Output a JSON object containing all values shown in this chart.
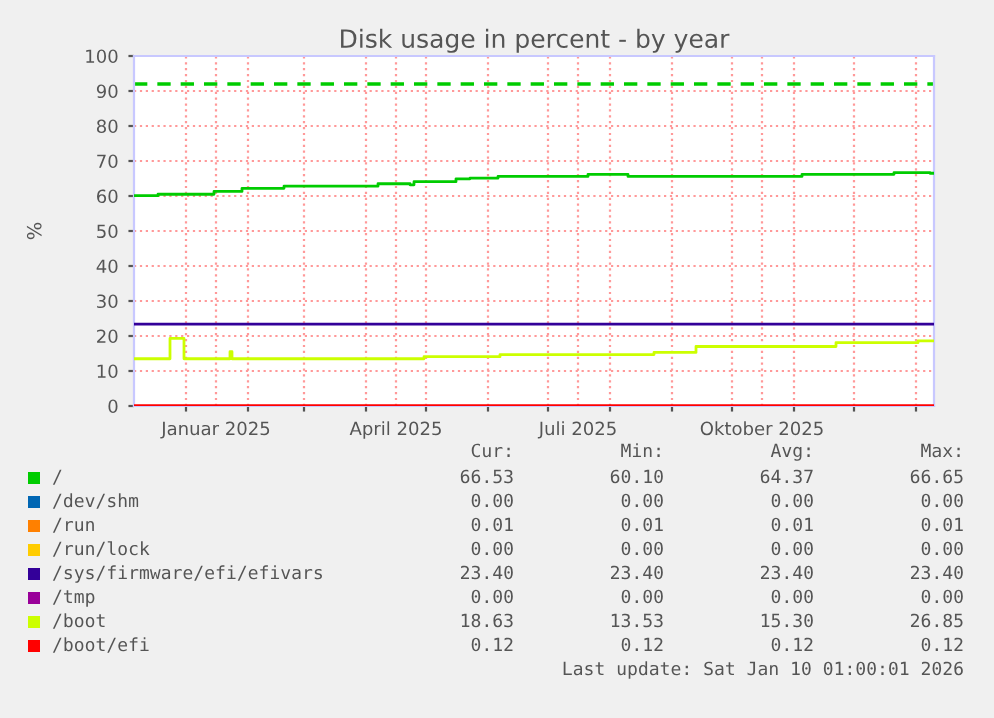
{
  "chart_data": {
    "type": "step",
    "title": "Disk usage in percent - by year",
    "ylabel": "%",
    "xlim": [
      "2024-12-06",
      "2026-01-10"
    ],
    "ylim": [
      0,
      100
    ],
    "yticks": [
      0,
      10,
      20,
      30,
      40,
      50,
      60,
      70,
      80,
      90,
      100
    ],
    "xticks": [
      {
        "value": "2025-01-01",
        "label": null
      },
      {
        "value": "2025-02-01",
        "label": null
      },
      {
        "value": "2025-03-01",
        "label": null
      },
      {
        "value": "2025-04-01",
        "label": null
      },
      {
        "value": "2025-05-01",
        "label": null
      },
      {
        "value": "2025-06-01",
        "label": null
      },
      {
        "value": "2025-07-01",
        "label": null
      },
      {
        "value": "2025-08-01",
        "label": null
      },
      {
        "value": "2025-09-01",
        "label": null
      },
      {
        "value": "2025-10-01",
        "label": null
      },
      {
        "value": "2025-11-01",
        "label": null
      },
      {
        "value": "2025-12-01",
        "label": null
      },
      {
        "value": "2026-01-01",
        "label": null
      },
      {
        "value": "2025-01-16",
        "label": "Januar 2025"
      },
      {
        "value": "2025-04-16",
        "label": "April 2025"
      },
      {
        "value": "2025-07-16",
        "label": "Juli 2025"
      },
      {
        "value": "2025-10-16",
        "label": "Oktober 2025"
      }
    ],
    "grid": true,
    "legend": "bottom",
    "series": [
      {
        "name": "/",
        "color": "#00cc00",
        "x": [
          "2024-12-06",
          "2024-12-18",
          "2025-01-15",
          "2025-01-29",
          "2025-02-19",
          "2025-04-07",
          "2025-04-23",
          "2025-04-25",
          "2025-05-16",
          "2025-05-23",
          "2025-06-06",
          "2025-07-21",
          "2025-08-10",
          "2025-11-05",
          "2025-12-21",
          "2026-01-08",
          "2026-01-10"
        ],
        "values": [
          60.1,
          60.5,
          61.3,
          62.2,
          62.8,
          63.5,
          63.2,
          64.1,
          64.9,
          65.1,
          65.6,
          66.2,
          65.6,
          66.2,
          66.7,
          66.5,
          66.5
        ]
      },
      {
        "name": "/dev/shm",
        "color": "#0066b3"
      },
      {
        "name": "/run",
        "color": "#ff8000"
      },
      {
        "name": "/run/lock",
        "color": "#ffcc00"
      },
      {
        "name": "/sys/firmware/efi/efivars",
        "color": "#330099",
        "x": [
          "2024-12-06",
          "2026-01-10"
        ],
        "values": [
          23.4,
          23.4
        ]
      },
      {
        "name": "/tmp",
        "color": "#990099"
      },
      {
        "name": "/boot",
        "color": "#ccff00",
        "x": [
          "2024-12-06",
          "2024-12-24",
          "2024-12-31",
          "2025-01-23",
          "2025-01-24",
          "2025-04-30",
          "2025-06-07",
          "2025-08-23",
          "2025-09-13",
          "2025-11-22",
          "2026-01-02",
          "2026-01-10"
        ],
        "values": [
          13.5,
          19.3,
          13.5,
          15.5,
          13.5,
          14.1,
          14.7,
          15.3,
          17.0,
          18.1,
          18.6,
          18.6
        ]
      },
      {
        "name": "/boot/efi",
        "color": "#ff0000",
        "x": [
          "2024-12-06",
          "2026-01-10"
        ],
        "values": [
          0.1,
          0.1
        ]
      }
    ],
    "ref_lines": [
      {
        "axis": "y",
        "value": 92,
        "color": "#00cc00",
        "line_style": "dashed"
      }
    ],
    "annotations": [
      "Cur:",
      "Min:",
      "Avg:",
      "Max:",
      "66.53",
      "60.10",
      "64.37",
      "66.65",
      "0.00",
      "0.00",
      "0.00",
      "0.00",
      "0.01",
      "0.01",
      "0.01",
      "0.01",
      "0.00",
      "0.00",
      "0.00",
      "0.00",
      "23.40",
      "23.40",
      "23.40",
      "23.40",
      "0.00",
      "0.00",
      "0.00",
      "0.00",
      "18.63",
      "13.53",
      "15.30",
      "26.85",
      "0.12",
      "0.12",
      "0.12",
      "0.12",
      "Last update: Sat Jan 10 01:00:01 2026"
    ]
  }
}
